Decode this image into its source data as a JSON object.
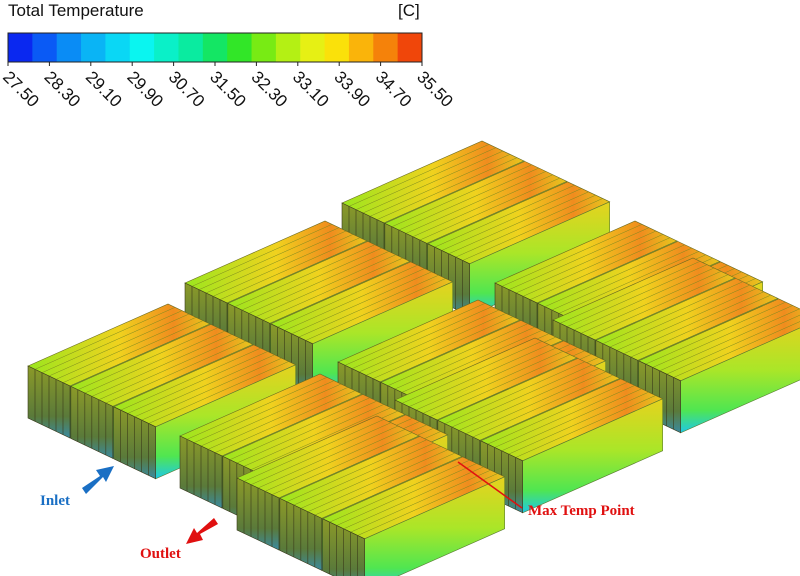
{
  "colorbar": {
    "title": "Total Temperature",
    "unit": "[C]",
    "ticks": [
      "27.50",
      "28.30",
      "29.10",
      "29.90",
      "30.70",
      "31.50",
      "32.30",
      "33.10",
      "33.90",
      "34.70",
      "35.50"
    ],
    "colors": [
      "#0a28f0",
      "#0a5af5",
      "#0a8cf5",
      "#0ab4f5",
      "#0ad7f5",
      "#0af5f0",
      "#0af0c8",
      "#0aeba0",
      "#14e664",
      "#32e628",
      "#78eb14",
      "#b4f014",
      "#e6f014",
      "#fae10a",
      "#fab40a",
      "#f5820a",
      "#f0460a"
    ]
  },
  "annotations": {
    "inlet": "Inlet",
    "outlet": "Outlet",
    "max_point": "Max Temp Point"
  }
}
